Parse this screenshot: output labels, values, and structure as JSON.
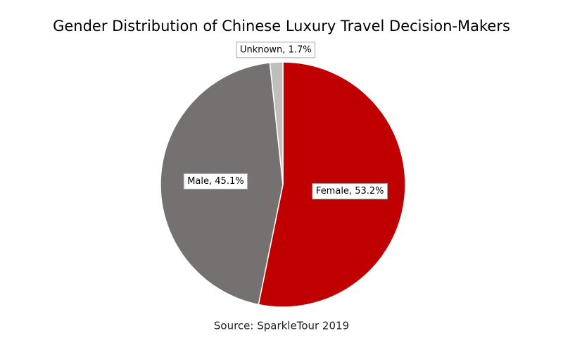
{
  "chart_data": {
    "type": "pie",
    "title": "Gender Distribution of Chinese Luxury Travel Decision-Makers",
    "categories": [
      "Female",
      "Male",
      "Unknown"
    ],
    "values": [
      53.2,
      45.1,
      1.7
    ],
    "value_labels": [
      "Female, 53.2%",
      "Male, 45.1%",
      "Unknown, 1.7%"
    ],
    "colors": [
      "#c00000",
      "#767171",
      "#bfbfbf"
    ],
    "source": "Source: SparkleTour 2019"
  }
}
